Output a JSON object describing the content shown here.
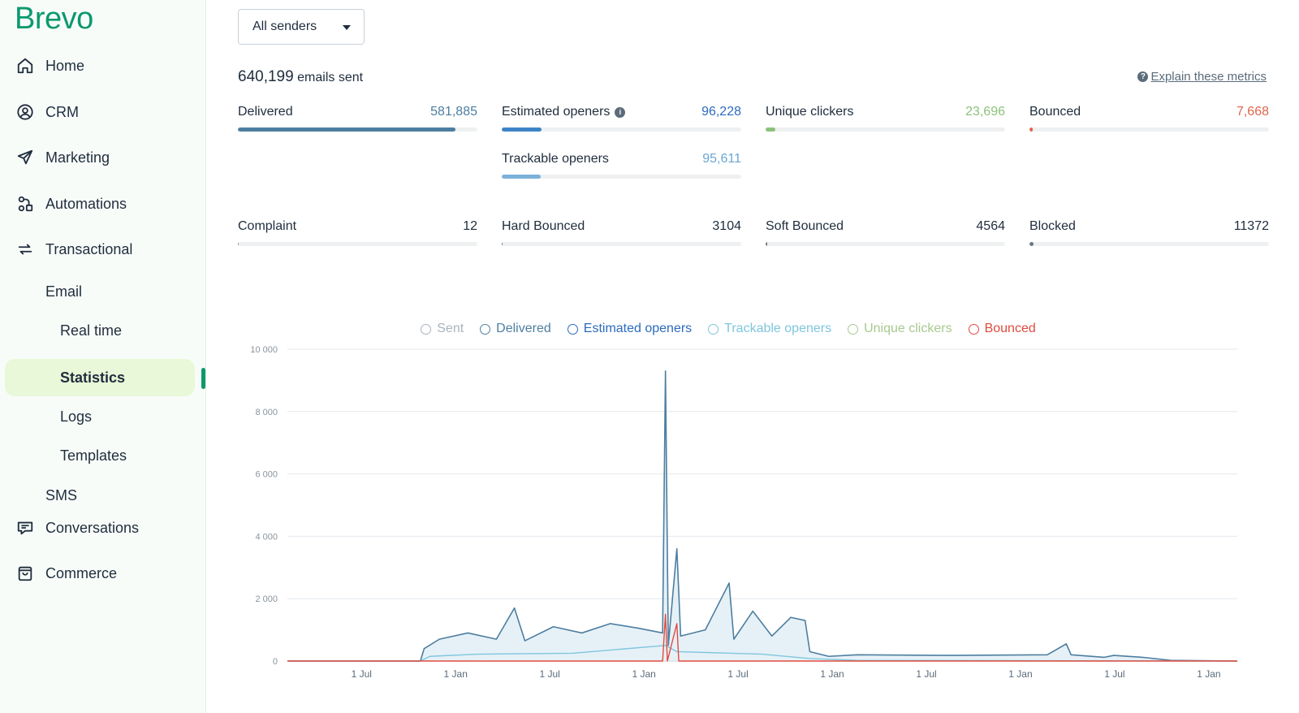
{
  "sidebar": {
    "logo": "Brevo",
    "nav": [
      {
        "label": "Home",
        "icon": "home-icon"
      },
      {
        "label": "CRM",
        "icon": "crm-contact-icon"
      },
      {
        "label": "Marketing",
        "icon": "paper-plane-icon"
      },
      {
        "label": "Automations",
        "icon": "automation-icon"
      },
      {
        "label": "Transactional",
        "icon": "swap-arrows-icon"
      }
    ],
    "transactional_sub": {
      "email": "Email",
      "email_items": [
        "Real time",
        "Statistics",
        "Logs",
        "Templates"
      ],
      "active_item": "Statistics",
      "sms": "SMS"
    },
    "nav_bottom": [
      {
        "label": "Conversations",
        "icon": "chat-bubble-icon"
      },
      {
        "label": "Commerce",
        "icon": "shopping-bag-icon"
      }
    ],
    "accent_color": "#0b996e",
    "active_bg_color": "#e8f8d8"
  },
  "header": {
    "sender_select": "All senders",
    "emails_sent_count": "640,199",
    "emails_sent_label": " emails sent",
    "explain_link": "Explain these metrics"
  },
  "metrics": {
    "delivered": {
      "label": "Delivered",
      "value": "581,885",
      "fraction": 0.909,
      "color": "#4d7ea0"
    },
    "estimated_openers": {
      "label": "Estimated openers",
      "value": "96,228",
      "fraction": 0.165,
      "color": "#3d84c6"
    },
    "trackable_openers": {
      "label": "Trackable openers",
      "value": "95,611",
      "fraction": 0.164,
      "color": "#7bb1d8"
    },
    "unique_clickers": {
      "label": "Unique clickers",
      "value": "23,696",
      "fraction": 0.041,
      "color": "#8ac27a"
    },
    "bounced": {
      "label": "Bounced",
      "value": "7,668",
      "fraction": 0.012,
      "color": "#e1654d"
    },
    "complaint": {
      "label": "Complaint",
      "value": "12",
      "fraction": 0.0001,
      "color": "#8a949e"
    },
    "hard_bounced": {
      "label": "Hard Bounced",
      "value": "3104",
      "fraction": 0.005,
      "color": "#6b7680"
    },
    "soft_bounced": {
      "label": "Soft Bounced",
      "value": "4564",
      "fraction": 0.007,
      "color": "#6b7680"
    },
    "blocked": {
      "label": "Blocked",
      "value": "11372",
      "fraction": 0.018,
      "color": "#6b7680"
    }
  },
  "chart_data": {
    "type": "line",
    "legend": [
      {
        "name": "Sent",
        "color": "#a9b3bc"
      },
      {
        "name": "Delivered",
        "color": "#4d7ea0"
      },
      {
        "name": "Estimated openers",
        "color": "#2b6bbd"
      },
      {
        "name": "Trackable openers",
        "color": "#7fc6dd"
      },
      {
        "name": "Unique clickers",
        "color": "#a7c98f"
      },
      {
        "name": "Bounced",
        "color": "#e14b3f"
      }
    ],
    "legend_position": "top-center",
    "y_ticks": [
      "10 000",
      "8 000",
      "6 000",
      "4 000",
      "2 000",
      "0"
    ],
    "ylim": [
      0,
      10000
    ],
    "x_ticks": [
      "1 Jul",
      "1 Jan",
      "1 Jul",
      "1 Jan",
      "1 Jul",
      "1 Jan",
      "1 Jul",
      "1 Jan",
      "1 Jul",
      "1 Jan"
    ],
    "grid": true,
    "series": [
      {
        "name": "Delivered",
        "points": [
          [
            0,
            0
          ],
          [
            0.14,
            0
          ],
          [
            0.144,
            400
          ],
          [
            0.16,
            700
          ],
          [
            0.19,
            900
          ],
          [
            0.22,
            700
          ],
          [
            0.239,
            1700
          ],
          [
            0.25,
            650
          ],
          [
            0.28,
            1100
          ],
          [
            0.31,
            900
          ],
          [
            0.34,
            1200
          ],
          [
            0.37,
            1050
          ],
          [
            0.395,
            900
          ],
          [
            0.398,
            9300
          ],
          [
            0.401,
            500
          ],
          [
            0.41,
            3600
          ],
          [
            0.414,
            800
          ],
          [
            0.44,
            1000
          ],
          [
            0.465,
            2500
          ],
          [
            0.47,
            700
          ],
          [
            0.49,
            1600
          ],
          [
            0.51,
            800
          ],
          [
            0.53,
            1400
          ],
          [
            0.545,
            1300
          ],
          [
            0.55,
            300
          ],
          [
            0.57,
            150
          ],
          [
            0.6,
            200
          ],
          [
            0.7,
            180
          ],
          [
            0.8,
            200
          ],
          [
            0.82,
            550
          ],
          [
            0.825,
            200
          ],
          [
            0.86,
            120
          ],
          [
            0.87,
            180
          ],
          [
            0.9,
            120
          ],
          [
            0.93,
            20
          ],
          [
            1,
            0
          ]
        ]
      },
      {
        "name": "Trackable openers",
        "points": [
          [
            0,
            0
          ],
          [
            0.14,
            0
          ],
          [
            0.15,
            150
          ],
          [
            0.2,
            220
          ],
          [
            0.3,
            250
          ],
          [
            0.398,
            500
          ],
          [
            0.41,
            300
          ],
          [
            0.5,
            220
          ],
          [
            0.55,
            80
          ],
          [
            0.6,
            20
          ],
          [
            1,
            0
          ]
        ]
      },
      {
        "name": "Bounced",
        "points": [
          [
            0,
            0
          ],
          [
            0.395,
            0
          ],
          [
            0.398,
            1500
          ],
          [
            0.4,
            0
          ],
          [
            0.41,
            1200
          ],
          [
            0.412,
            0
          ],
          [
            1,
            0
          ]
        ]
      }
    ]
  }
}
